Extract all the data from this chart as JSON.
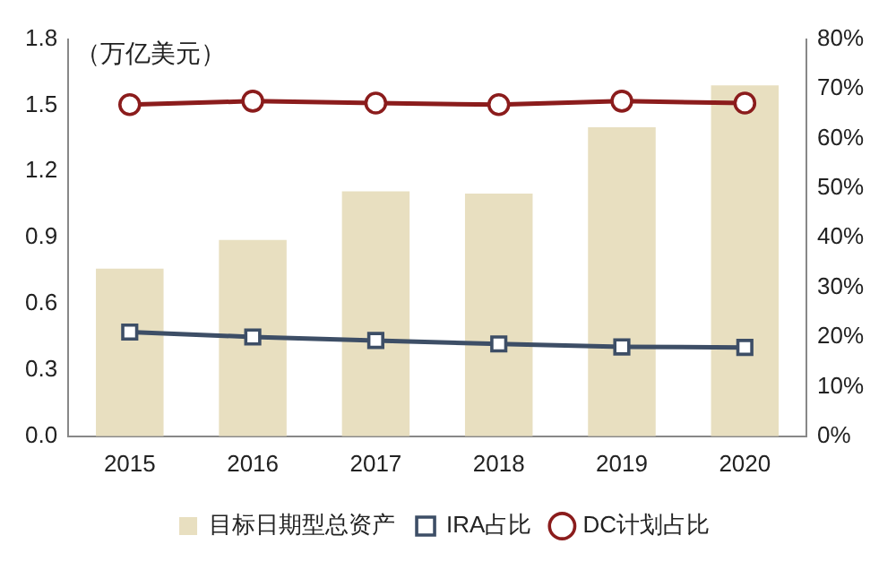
{
  "chart_data": {
    "type": "bar",
    "ylabel": "（万亿美元）",
    "categories": [
      "2015",
      "2016",
      "2017",
      "2018",
      "2019",
      "2020"
    ],
    "series": [
      {
        "name": "目标日期型总资产",
        "color": "#e8dfc0",
        "values": [
          0.76,
          0.89,
          1.11,
          1.1,
          1.4,
          1.59
        ]
      },
      {
        "name": "IRA占比",
        "type": "line",
        "axis": "y2",
        "color": "#3d4e66",
        "marker": "square",
        "values": [
          21,
          20,
          19.3,
          18.6,
          18,
          17.9
        ]
      },
      {
        "name": "DC计划占比",
        "type": "line",
        "axis": "y2",
        "color": "#8b1c1c",
        "marker": "circle",
        "values": [
          66.8,
          67.5,
          67.1,
          66.8,
          67.5,
          67.1
        ]
      }
    ],
    "ylim": [
      0,
      1.8
    ],
    "yticks": [
      {
        "value": 0,
        "label": "0.0"
      },
      0.3,
      0.6,
      0.9,
      1.2,
      1.5,
      1.8
    ],
    "y2lim": [
      0,
      80
    ],
    "y2ticks": [
      {
        "value": 0,
        "label": "0%"
      },
      {
        "value": 10,
        "label": "10%"
      },
      {
        "value": 20,
        "label": "20%"
      },
      {
        "value": 30,
        "label": "30%"
      },
      {
        "value": 40,
        "label": "40%"
      },
      {
        "value": 50,
        "label": "50%"
      },
      {
        "value": 60,
        "label": "60%"
      },
      {
        "value": 70,
        "label": "70%"
      },
      {
        "value": 80,
        "label": "80%"
      }
    ],
    "grid": false,
    "legend": "bottom"
  }
}
